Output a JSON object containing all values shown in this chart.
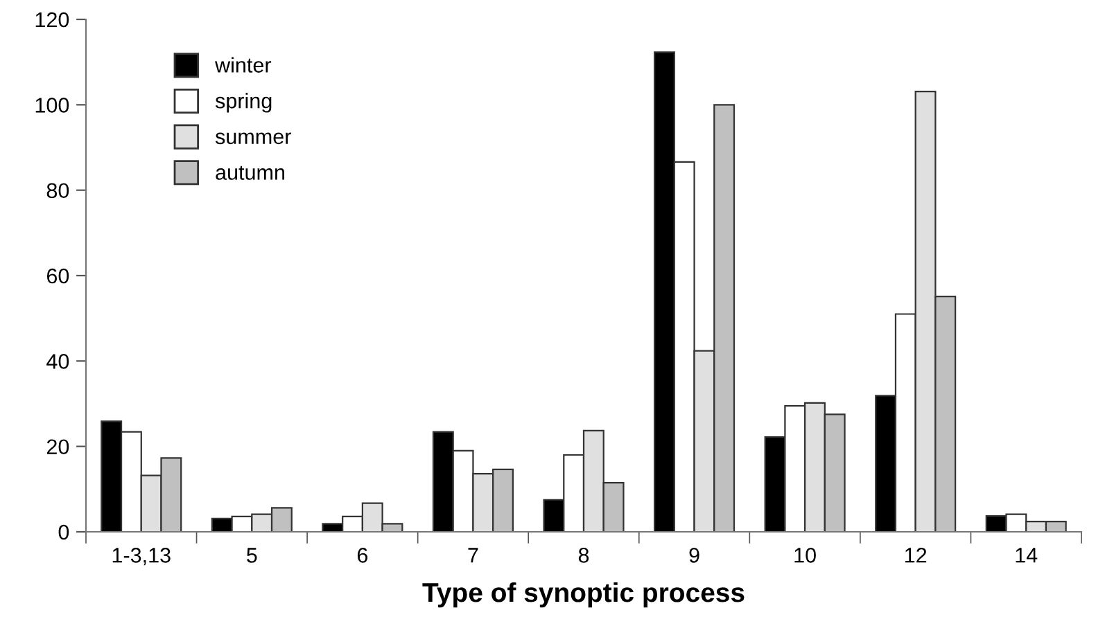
{
  "chart_data": {
    "type": "bar",
    "xlabel": "Type of synoptic process",
    "categories": [
      "1-3,13",
      "5",
      "6",
      "7",
      "8",
      "9",
      "10",
      "12",
      "14"
    ],
    "series": [
      {
        "name": "winter",
        "color": "#000000",
        "values": [
          25.9,
          3.1,
          1.9,
          23.4,
          7.5,
          112.3,
          22.2,
          31.9,
          3.7
        ]
      },
      {
        "name": "spring",
        "color": "#ffffff",
        "values": [
          23.4,
          3.6,
          3.6,
          19.0,
          18.0,
          86.6,
          29.5,
          51.0,
          4.1
        ]
      },
      {
        "name": "summer",
        "color": "#e0e0e0",
        "values": [
          13.2,
          4.1,
          6.7,
          13.6,
          23.7,
          42.4,
          30.2,
          103.1,
          2.4
        ]
      },
      {
        "name": "autumn",
        "color": "#c0c0c0",
        "values": [
          17.3,
          5.6,
          1.9,
          14.6,
          11.5,
          100.0,
          27.5,
          55.1,
          2.4
        ]
      }
    ],
    "ylim": [
      0,
      120
    ],
    "yticks": [
      0,
      20,
      40,
      60,
      80,
      100,
      120
    ],
    "grid": false,
    "legend": "top left"
  }
}
